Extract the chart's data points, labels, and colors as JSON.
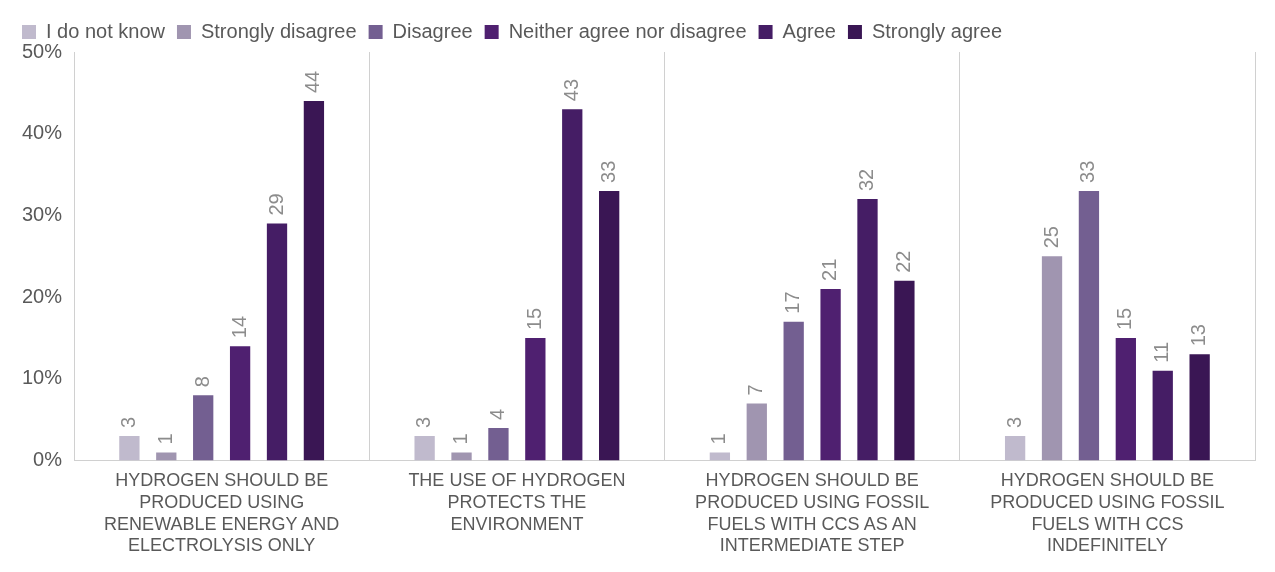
{
  "chart_data": {
    "type": "bar",
    "categories": [
      "HYDROGEN SHOULD BE PRODUCED USING RENEWABLE ENERGY AND ELECTROLYSIS ONLY",
      "THE USE OF HYDROGEN PROTECTS THE ENVIRONMENT",
      "HYDROGEN SHOULD BE PRODUCED USING FOSSIL FUELS WITH CCS AS AN INTERMEDIATE STEP",
      "HYDROGEN SHOULD BE PRODUCED USING FOSSIL FUELS WITH CCS INDEFINITELY"
    ],
    "series": [
      {
        "name": "I do not know",
        "color": "#c0bacd",
        "values": [
          3,
          3,
          1,
          3
        ]
      },
      {
        "name": "Strongly disagree",
        "color": "#a095b0",
        "values": [
          1,
          1,
          7,
          25
        ]
      },
      {
        "name": "Disagree",
        "color": "#735f91",
        "values": [
          8,
          4,
          17,
          33
        ]
      },
      {
        "name": "Neither agree nor disagree",
        "color": "#4f2070",
        "values": [
          14,
          15,
          21,
          15
        ]
      },
      {
        "name": "Agree",
        "color": "#451d65",
        "values": [
          29,
          43,
          32,
          11
        ]
      },
      {
        "name": "Strongly agree",
        "color": "#3a1654",
        "values": [
          44,
          33,
          22,
          13
        ]
      }
    ],
    "ylim": [
      0,
      50
    ],
    "yticks": [
      {
        "value": 0,
        "label": "0%"
      },
      {
        "value": 10,
        "label": "10%"
      },
      {
        "value": 20,
        "label": "20%"
      },
      {
        "value": 30,
        "label": "30%"
      },
      {
        "value": 40,
        "label": "40%"
      },
      {
        "value": 50,
        "label": "50%"
      }
    ],
    "grid": "x",
    "legend": "top",
    "data_labels": true
  }
}
